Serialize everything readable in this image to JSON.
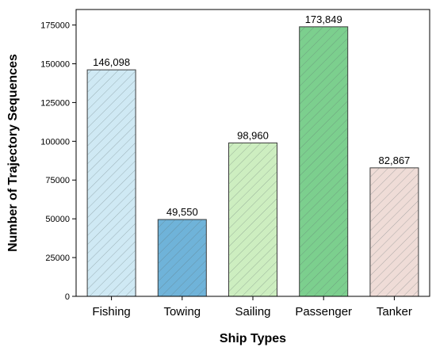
{
  "chart_data": {
    "type": "bar",
    "title": "",
    "xlabel": "Ship Types",
    "ylabel": "Number of Trajectory Sequences",
    "categories": [
      "Fishing",
      "Towing",
      "Sailing",
      "Passenger",
      "Tanker"
    ],
    "values": [
      146098,
      49550,
      98960,
      173849,
      82867
    ],
    "value_labels": [
      "146,098",
      "49,550",
      "98,960",
      "173,849",
      "82,867"
    ],
    "ylim": [
      0,
      185000
    ],
    "yticks": [
      0,
      25000,
      50000,
      75000,
      100000,
      125000,
      150000,
      175000
    ],
    "ytick_labels": [
      "0",
      "25000",
      "50000",
      "75000",
      "100000",
      "125000",
      "150000",
      "175000"
    ],
    "bar_colors": [
      "#cfe9f4",
      "#6fb3d9",
      "#cdeec0",
      "#7ccf8e",
      "#efdcd7"
    ],
    "hatch": "diagonal",
    "grid": false,
    "legend": "none"
  }
}
